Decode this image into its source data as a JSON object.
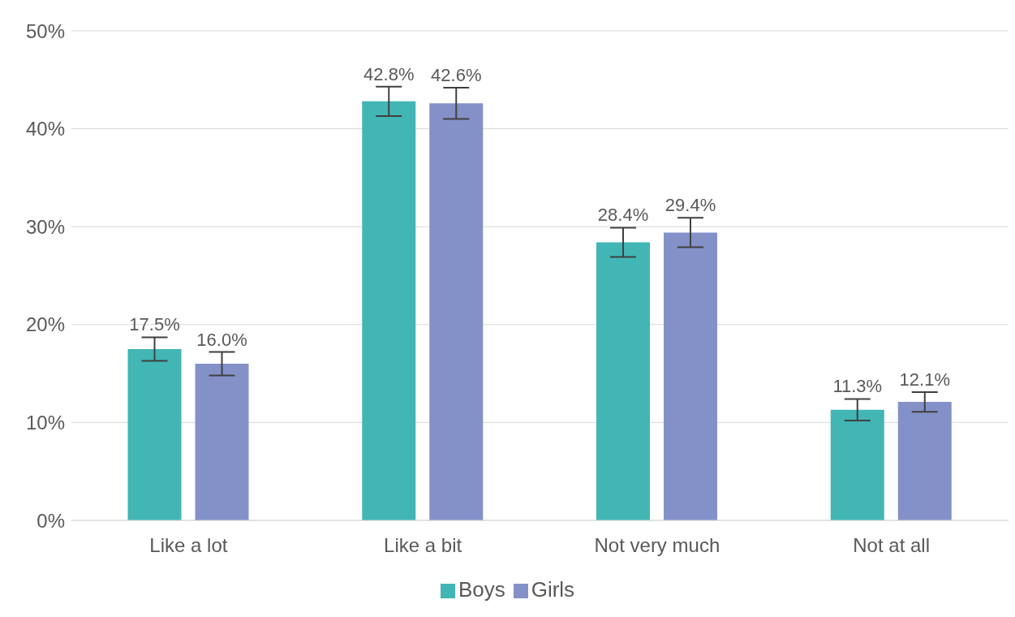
{
  "chart_data": {
    "type": "bar",
    "categories": [
      "Like a lot",
      "Like a bit",
      "Not very much",
      "Not at all"
    ],
    "series": [
      {
        "name": "Boys",
        "color": "#41b6b5",
        "values": [
          17.5,
          42.8,
          28.4,
          11.3
        ],
        "errors": [
          1.2,
          1.5,
          1.5,
          1.1
        ],
        "value_labels": [
          "17.5%",
          "42.8%",
          "28.4%",
          "11.3%"
        ]
      },
      {
        "name": "Girls",
        "color": "#8491c8",
        "values": [
          16.0,
          42.6,
          29.4,
          12.1
        ],
        "errors": [
          1.2,
          1.6,
          1.5,
          1.0
        ],
        "value_labels": [
          "16.0%",
          "42.6%",
          "29.4%",
          "12.1%"
        ]
      }
    ],
    "ylim": [
      0,
      50
    ],
    "yticks": [
      {
        "value": 0,
        "label": "0%"
      },
      {
        "value": 10,
        "label": "10%"
      },
      {
        "value": 20,
        "label": "20%"
      },
      {
        "value": 30,
        "label": "30%"
      },
      {
        "value": 40,
        "label": "40%"
      },
      {
        "value": 50,
        "label": "50%"
      }
    ],
    "grid": "y",
    "legend": "bottom"
  }
}
